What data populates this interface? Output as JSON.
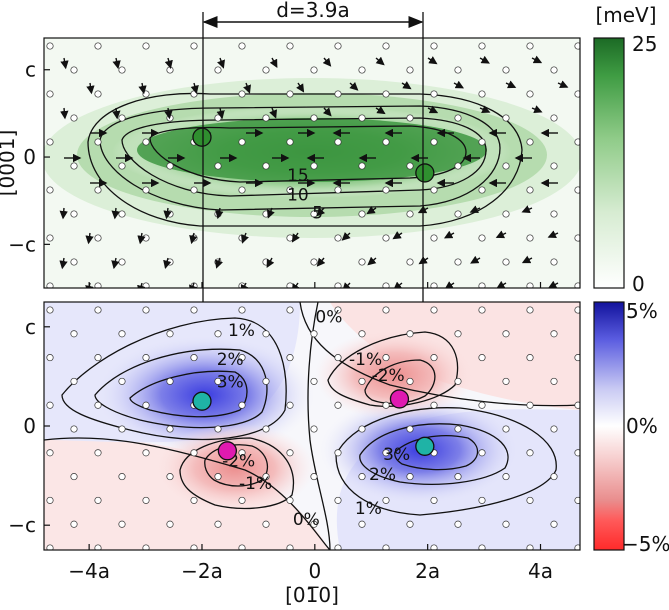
{
  "chart_data": [
    {
      "type": "heatmap",
      "title": "",
      "description_units": "meV",
      "colorbar_label": "[meV]",
      "colorbar_ticks": [
        "25",
        "0"
      ],
      "colorbar_range": [
        0,
        25
      ],
      "colormap": [
        "#ffffff",
        "#c9e6c4",
        "#7cc276",
        "#3c9a3e",
        "#1f6e28"
      ],
      "xlabel": "",
      "ylabel": "[0001]",
      "xlim": [
        -4.8,
        4.7
      ],
      "ylim": [
        -3.3,
        3.0
      ],
      "x_ticks": [],
      "y_ticks": [
        {
          "v": 2.2,
          "label": "c"
        },
        {
          "v": 0,
          "label": "0"
        },
        {
          "v": -2.2,
          "label": "−c"
        }
      ],
      "contour_labels": [
        {
          "text": "15",
          "x": -0.3,
          "y": -0.6
        },
        {
          "text": "10",
          "x": -0.3,
          "y": -1.1
        },
        {
          "text": "5",
          "x": 0.05,
          "y": -1.55
        }
      ],
      "dislocations": [
        {
          "x": -2.0,
          "y": 0.5,
          "color": "#2f8f2f"
        },
        {
          "x": 1.95,
          "y": -0.4,
          "color": "#2f8f2f"
        }
      ],
      "annotation": "d=3.9a"
    },
    {
      "type": "heatmap",
      "title": "",
      "colorbar_ticks": [
        "5%",
        "0%",
        "−5%"
      ],
      "colorbar_range": [
        -5,
        5
      ],
      "colormap_positive": "#1a1aa8",
      "colormap_negative": "#ff2020",
      "xlabel": "[01̅0]",
      "ylabel": "",
      "xlim": [
        -4.8,
        4.7
      ],
      "ylim": [
        -2.75,
        2.75
      ],
      "x_ticks": [
        {
          "v": -4,
          "label": "−4a"
        },
        {
          "v": -2,
          "label": "−2a"
        },
        {
          "v": 0,
          "label": "0"
        },
        {
          "v": 2,
          "label": "2a"
        },
        {
          "v": 4,
          "label": "4a"
        }
      ],
      "y_ticks": [
        {
          "v": 2.2,
          "label": "c"
        },
        {
          "v": 0,
          "label": "0"
        },
        {
          "v": -2.2,
          "label": "−c"
        }
      ],
      "contour_labels": [
        {
          "text": "1%",
          "x": -1.3,
          "y": 2.0
        },
        {
          "text": "0%",
          "x": 0.25,
          "y": 2.3
        },
        {
          "text": "2%",
          "x": -1.5,
          "y": 1.35
        },
        {
          "text": "3%",
          "x": -1.5,
          "y": 0.85
        },
        {
          "text": "-1%",
          "x": 0.9,
          "y": 1.35
        },
        {
          "text": "-2%",
          "x": 1.3,
          "y": 1.0
        },
        {
          "text": "-2%",
          "x": -1.35,
          "y": -0.9
        },
        {
          "text": "-1%",
          "x": -1.05,
          "y": -1.4
        },
        {
          "text": "3%",
          "x": 1.45,
          "y": -0.75
        },
        {
          "text": "2%",
          "x": 1.2,
          "y": -1.2
        },
        {
          "text": "1%",
          "x": 0.95,
          "y": -1.95
        },
        {
          "text": "0%",
          "x": -0.15,
          "y": -2.2
        }
      ],
      "dislocations": [
        {
          "x": -2.0,
          "y": 0.55,
          "color": "#1fb3a6"
        },
        {
          "x": 1.95,
          "y": -0.45,
          "color": "#1fb3a6"
        },
        {
          "x": 1.5,
          "y": 0.6,
          "color": "#e01ab0"
        },
        {
          "x": -1.55,
          "y": -0.55,
          "color": "#e01ab0"
        }
      ]
    }
  ]
}
